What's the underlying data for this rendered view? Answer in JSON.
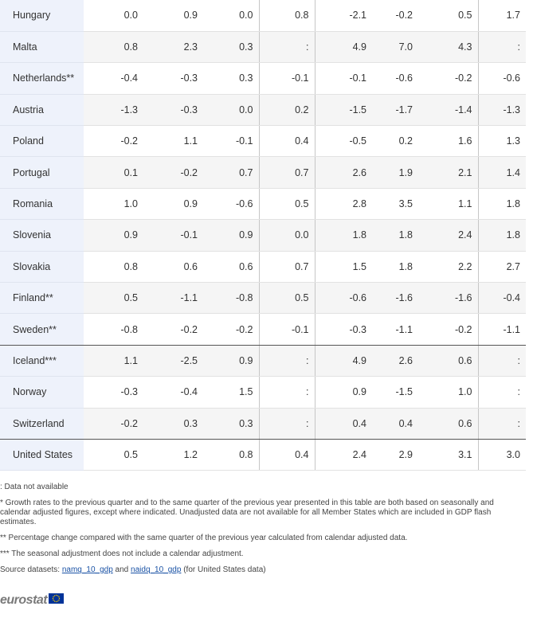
{
  "rows": [
    {
      "country": "Hungary",
      "values": [
        "0.0",
        "0.9",
        "0.0",
        "0.8",
        "-2.1",
        "-0.2",
        "0.5",
        "1.7"
      ]
    },
    {
      "country": "Malta",
      "values": [
        "0.8",
        "2.3",
        "0.3",
        ":",
        "4.9",
        "7.0",
        "4.3",
        ":"
      ]
    },
    {
      "country": "Netherlands**",
      "values": [
        "-0.4",
        "-0.3",
        "0.3",
        "-0.1",
        "-0.1",
        "-0.6",
        "-0.2",
        "-0.6"
      ]
    },
    {
      "country": "Austria",
      "values": [
        "-1.3",
        "-0.3",
        "0.0",
        "0.2",
        "-1.5",
        "-1.7",
        "-1.4",
        "-1.3"
      ]
    },
    {
      "country": "Poland",
      "values": [
        "-0.2",
        "1.1",
        "-0.1",
        "0.4",
        "-0.5",
        "0.2",
        "1.6",
        "1.3"
      ]
    },
    {
      "country": "Portugal",
      "values": [
        "0.1",
        "-0.2",
        "0.7",
        "0.7",
        "2.6",
        "1.9",
        "2.1",
        "1.4"
      ]
    },
    {
      "country": "Romania",
      "values": [
        "1.0",
        "0.9",
        "-0.6",
        "0.5",
        "2.8",
        "3.5",
        "1.1",
        "1.8"
      ]
    },
    {
      "country": "Slovenia",
      "values": [
        "0.9",
        "-0.1",
        "0.9",
        "0.0",
        "1.8",
        "1.8",
        "2.4",
        "1.8"
      ]
    },
    {
      "country": "Slovakia",
      "values": [
        "0.8",
        "0.6",
        "0.6",
        "0.7",
        "1.5",
        "1.8",
        "2.2",
        "2.7"
      ]
    },
    {
      "country": "Finland**",
      "values": [
        "0.5",
        "-1.1",
        "-0.8",
        "0.5",
        "-0.6",
        "-1.6",
        "-1.6",
        "-0.4"
      ]
    },
    {
      "country": "Sweden**",
      "values": [
        "-0.8",
        "-0.2",
        "-0.2",
        "-0.1",
        "-0.3",
        "-1.1",
        "-0.2",
        "-1.1"
      ]
    },
    {
      "country": "Iceland***",
      "values": [
        "1.1",
        "-2.5",
        "0.9",
        ":",
        "4.9",
        "2.6",
        "0.6",
        ":"
      ]
    },
    {
      "country": "Norway",
      "values": [
        "-0.3",
        "-0.4",
        "1.5",
        ":",
        "0.9",
        "-1.5",
        "1.0",
        ":"
      ]
    },
    {
      "country": "Switzerland",
      "values": [
        "-0.2",
        "0.3",
        "0.3",
        ":",
        "0.4",
        "0.4",
        "0.6",
        ":"
      ]
    },
    {
      "country": "United States",
      "values": [
        "0.5",
        "1.2",
        "0.8",
        "0.4",
        "2.4",
        "2.9",
        "3.1",
        "3.0"
      ]
    }
  ],
  "notes": {
    "not_available": ": Data not available",
    "growth_rates": "* Growth rates to the previous quarter and to the same quarter of the previous year presented in this table are both based on seasonally and calendar adjusted figures, except where indicated. Unadjusted data are not available for all Member States which are included in GDP flash estimates.",
    "percentage_change": "** Percentage change compared with the same quarter of the previous year calculated from calendar adjusted data.",
    "seasonal": "*** The seasonal adjustment does not include a calendar adjustment.",
    "source_prefix": "Source datasets: ",
    "link1": "namq_10_gdp",
    "source_and": " and ",
    "link2": "naidq_10_gdp",
    "source_suffix": " (for United States data)"
  },
  "logo": {
    "text": "eurostat",
    "flag_icon": "eu-flag-icon",
    "flag_color": "#003399",
    "star_color": "#ffcc00"
  }
}
